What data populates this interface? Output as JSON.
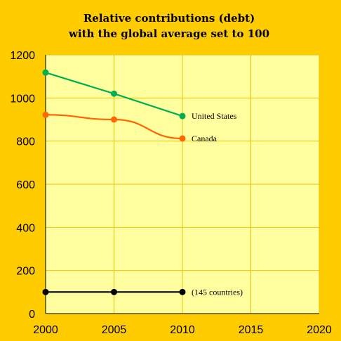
{
  "chart_data": {
    "type": "line",
    "title": [
      "Relative contributions (debt)",
      "with the global average set to 100"
    ],
    "xlabel": "",
    "ylabel": "",
    "xlim": [
      2000,
      2020
    ],
    "ylim": [
      0,
      1200
    ],
    "x_ticks": [
      2000,
      2005,
      2010,
      2015,
      2020
    ],
    "y_ticks": [
      0,
      200,
      400,
      600,
      800,
      1000,
      1200
    ],
    "grid": true,
    "series": [
      {
        "name": "United States",
        "color": "#00B050",
        "x": [
          2000,
          2005,
          2010
        ],
        "y": [
          1118,
          1020,
          916
        ]
      },
      {
        "name": "Canada",
        "color": "#FF6600",
        "x": [
          2000,
          2005,
          2010
        ],
        "y": [
          922,
          900,
          812
        ]
      },
      {
        "name": "(145 countries)",
        "color": "#000000",
        "x": [
          2000,
          2005,
          2010
        ],
        "y": [
          100,
          100,
          100
        ]
      }
    ]
  }
}
